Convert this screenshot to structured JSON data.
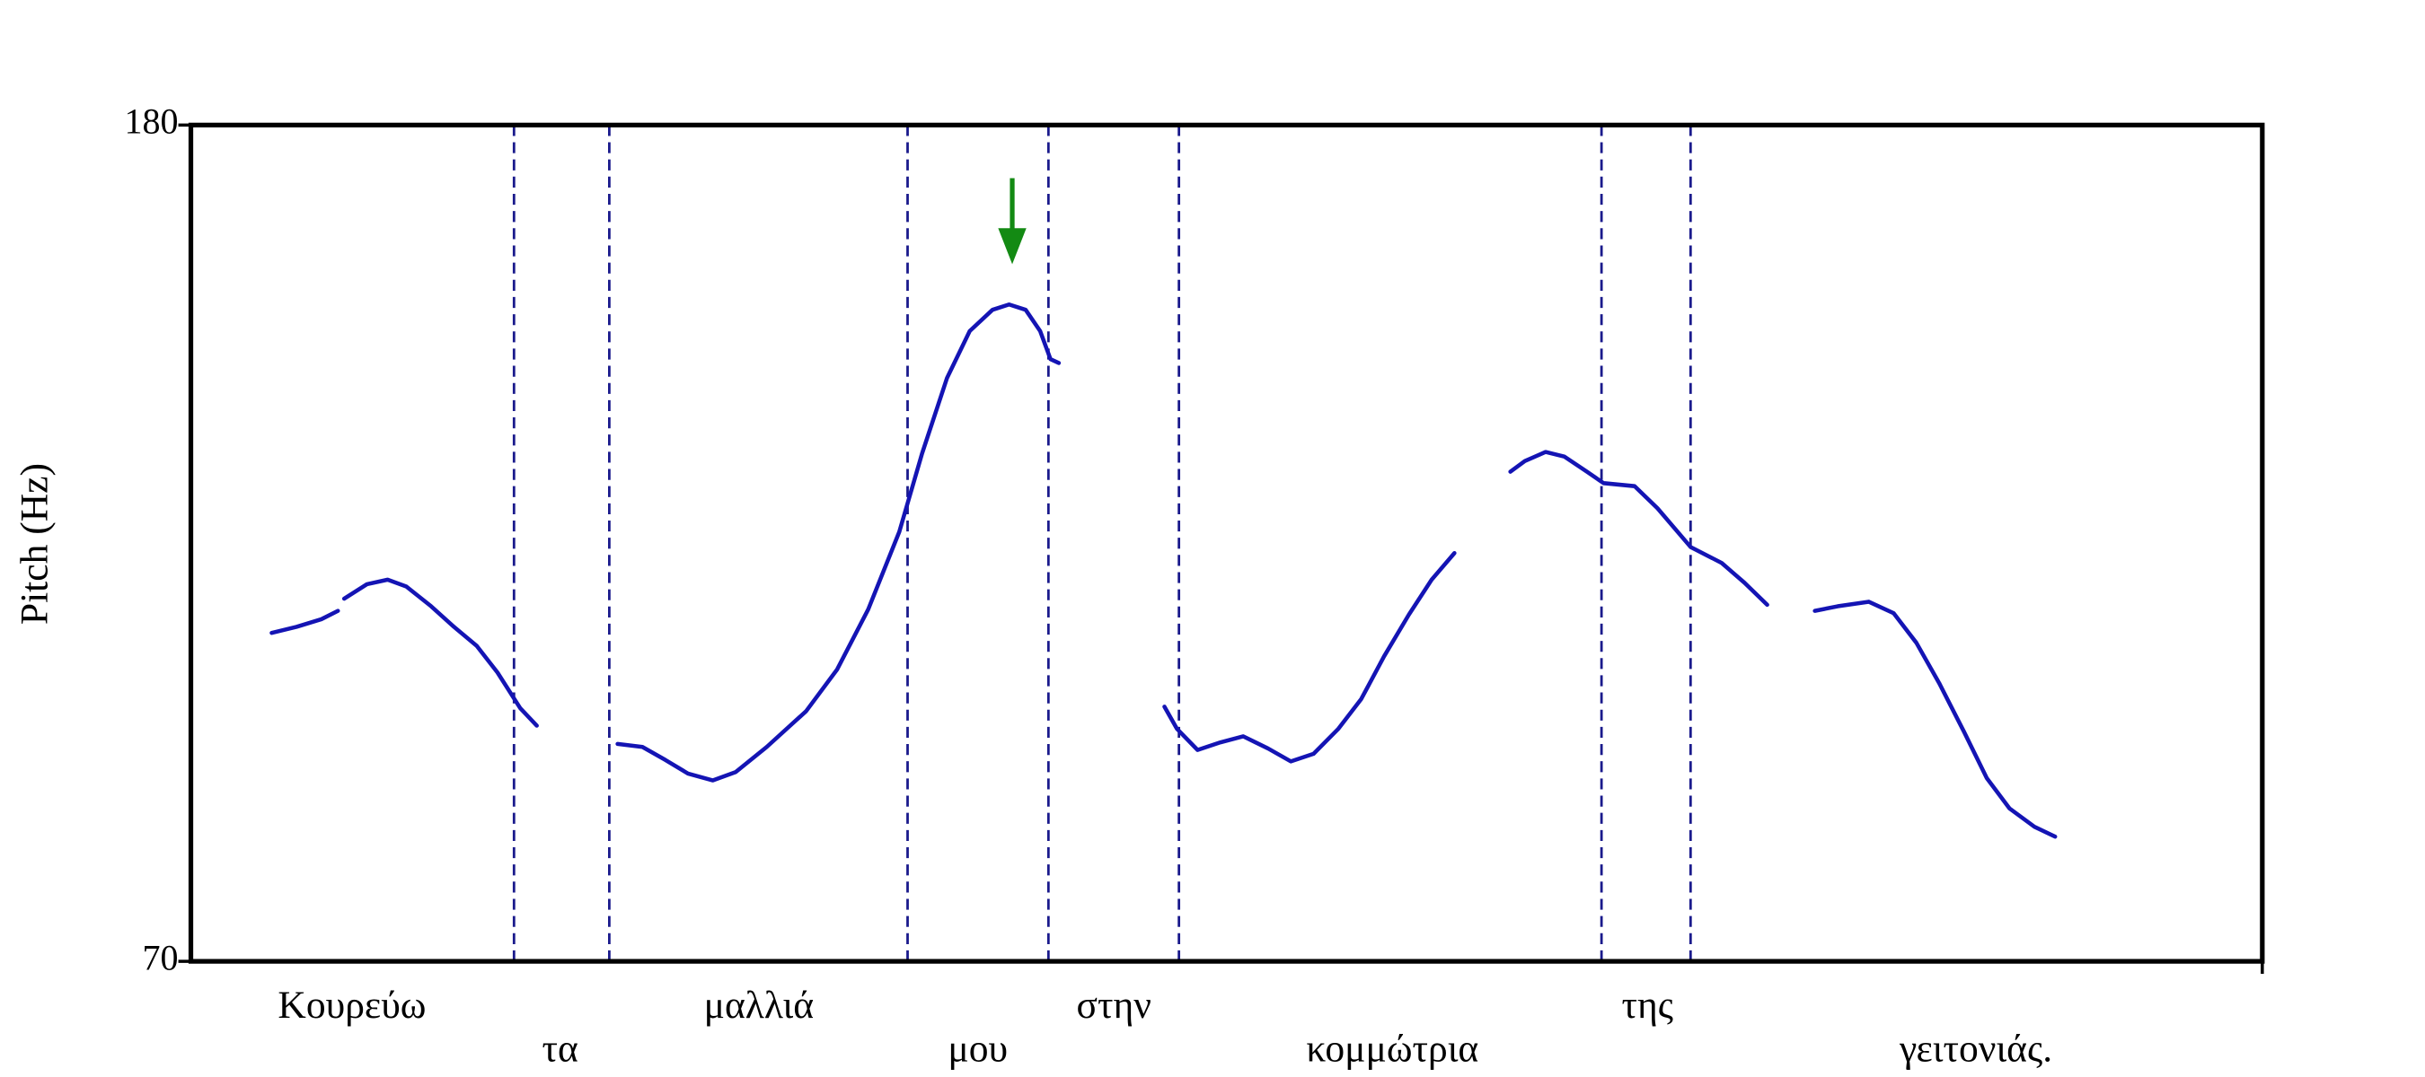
{
  "chart_data": {
    "type": "line",
    "ylabel": "Pitch (Hz)",
    "ylim": [
      70,
      180
    ],
    "yticks": [
      70,
      180
    ],
    "xlim": [
      0,
      100
    ],
    "color": "#1414b4",
    "boundary_color": "#1a1a8c",
    "words": [
      "Κουρεύω",
      "τα",
      "μαλλιά",
      "μου",
      "στην",
      "κομμώτρια",
      "της",
      "γειτονιάς."
    ],
    "boundaries": [
      15.6,
      20.2,
      34.6,
      41.4,
      47.7,
      68.1,
      72.4
    ],
    "segments": [
      {
        "x": [
          3.9,
          5.1,
          6.3,
          7.1
        ],
        "values": [
          113.2,
          114.0,
          115.0,
          116.1
        ]
      },
      {
        "x": [
          7.4,
          8.5,
          9.5,
          10.4,
          11.6,
          12.7,
          13.8,
          14.8,
          15.9,
          16.7
        ],
        "values": [
          117.7,
          119.6,
          120.2,
          119.3,
          116.7,
          114.0,
          111.5,
          108.0,
          103.3,
          101.0
        ]
      },
      {
        "x": [
          20.6,
          21.8,
          22.9,
          24.0,
          25.2,
          26.3,
          27.8,
          29.7,
          31.2,
          32.7,
          34.2,
          35.3,
          36.5,
          37.6,
          38.7,
          39.5,
          40.3,
          41.0,
          41.5,
          41.9
        ],
        "values": [
          98.6,
          98.2,
          96.5,
          94.7,
          93.8,
          94.9,
          98.2,
          102.9,
          108.4,
          116.3,
          126.5,
          136.8,
          146.7,
          152.9,
          155.7,
          156.4,
          155.7,
          152.9,
          149.2,
          148.7
        ]
      },
      {
        "x": [
          47.0,
          47.6,
          48.6,
          49.7,
          50.8,
          52.0,
          53.1,
          54.2,
          55.4,
          56.5,
          57.6,
          58.8,
          59.9,
          61.0
        ],
        "values": [
          103.5,
          100.6,
          97.8,
          98.8,
          99.6,
          98.0,
          96.3,
          97.3,
          100.6,
          104.5,
          110.1,
          115.6,
          120.2,
          123.7
        ]
      },
      {
        "x": [
          63.7,
          64.4,
          65.4,
          66.3,
          67.4,
          68.2,
          69.7,
          70.8,
          72.4,
          73.9,
          75.0,
          76.1
        ],
        "values": [
          134.4,
          135.8,
          137.0,
          136.4,
          134.4,
          132.9,
          132.5,
          129.6,
          124.5,
          122.4,
          119.8,
          116.9
        ]
      },
      {
        "x": [
          78.4,
          79.5,
          81.0,
          82.2,
          83.3,
          84.4,
          85.6,
          86.7,
          87.8,
          89.0,
          90.0
        ],
        "values": [
          116.1,
          116.7,
          117.3,
          115.8,
          111.9,
          106.6,
          100.2,
          94.1,
          90.1,
          87.7,
          86.4
        ]
      }
    ]
  }
}
